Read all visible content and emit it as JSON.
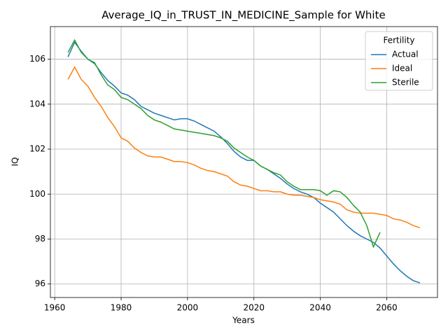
{
  "chart_data": {
    "type": "line",
    "title": "Average_IQ_in_TRUST_IN_MEDICINE_Sample for White",
    "xlabel": "Years",
    "ylabel": "IQ",
    "legend_title": "Fertility",
    "legend_loc": "upper right",
    "grid": true,
    "x": [
      1964,
      1966,
      1968,
      1970,
      1972,
      1974,
      1976,
      1978,
      1980,
      1982,
      1984,
      1986,
      1988,
      1990,
      1992,
      1994,
      1996,
      1998,
      2000,
      2002,
      2004,
      2006,
      2008,
      2010,
      2012,
      2014,
      2016,
      2018,
      2020,
      2022,
      2024,
      2026,
      2028,
      2030,
      2032,
      2034,
      2036,
      2038,
      2040,
      2042,
      2044,
      2046,
      2048,
      2050,
      2052,
      2054,
      2056,
      2058,
      2060,
      2062,
      2064,
      2066,
      2068,
      2070
    ],
    "series": [
      {
        "name": "Actual",
        "color": "#1f77b4",
        "values": [
          106.1,
          106.75,
          106.35,
          106.0,
          105.8,
          105.4,
          105.05,
          104.8,
          104.5,
          104.4,
          104.2,
          103.9,
          103.75,
          103.6,
          103.5,
          103.4,
          103.3,
          103.35,
          103.35,
          103.25,
          103.1,
          102.95,
          102.8,
          102.55,
          102.25,
          101.9,
          101.65,
          101.5,
          101.5,
          101.25,
          101.1,
          100.9,
          100.7,
          100.45,
          100.25,
          100.1,
          100.0,
          99.85,
          99.6,
          99.4,
          99.2,
          98.9,
          98.6,
          98.35,
          98.15,
          98.0,
          97.85,
          97.6,
          97.25,
          96.9,
          96.6,
          96.35,
          96.15,
          96.05
        ]
      },
      {
        "name": "Ideal",
        "color": "#ff7f0e",
        "values": [
          105.1,
          105.65,
          105.1,
          104.8,
          104.3,
          103.9,
          103.4,
          103.0,
          102.5,
          102.35,
          102.05,
          101.85,
          101.7,
          101.65,
          101.65,
          101.55,
          101.45,
          101.45,
          101.4,
          101.3,
          101.15,
          101.05,
          101.0,
          100.9,
          100.8,
          100.55,
          100.4,
          100.35,
          100.25,
          100.15,
          100.15,
          100.1,
          100.1,
          100.0,
          99.95,
          99.95,
          99.9,
          99.85,
          99.75,
          99.7,
          99.65,
          99.55,
          99.3,
          99.2,
          99.15,
          99.15,
          99.15,
          99.1,
          99.05,
          98.9,
          98.85,
          98.75,
          98.6,
          98.5
        ]
      },
      {
        "name": "Sterile",
        "color": "#2ca02c",
        "values": [
          106.3,
          106.85,
          106.3,
          106.0,
          105.85,
          105.3,
          104.85,
          104.65,
          104.3,
          104.2,
          104.0,
          103.8,
          103.5,
          103.3,
          103.2,
          103.05,
          102.9,
          102.85,
          102.8,
          102.75,
          102.7,
          102.65,
          102.6,
          102.5,
          102.35,
          102.05,
          101.85,
          101.65,
          101.5,
          101.25,
          101.1,
          100.95,
          100.85,
          100.55,
          100.35,
          100.2,
          100.2,
          100.2,
          100.15,
          99.95,
          100.15,
          100.1,
          99.85,
          99.5,
          99.2,
          98.6,
          97.65,
          98.3,
          null,
          null,
          null,
          null,
          null,
          null
        ]
      }
    ],
    "xlim": [
      1958.7,
      2075.3
    ],
    "xticks": [
      1960,
      1980,
      2000,
      2020,
      2040,
      2060
    ],
    "ylim": [
      95.4,
      107.45
    ],
    "yticks": [
      96,
      98,
      100,
      102,
      104,
      106
    ]
  }
}
